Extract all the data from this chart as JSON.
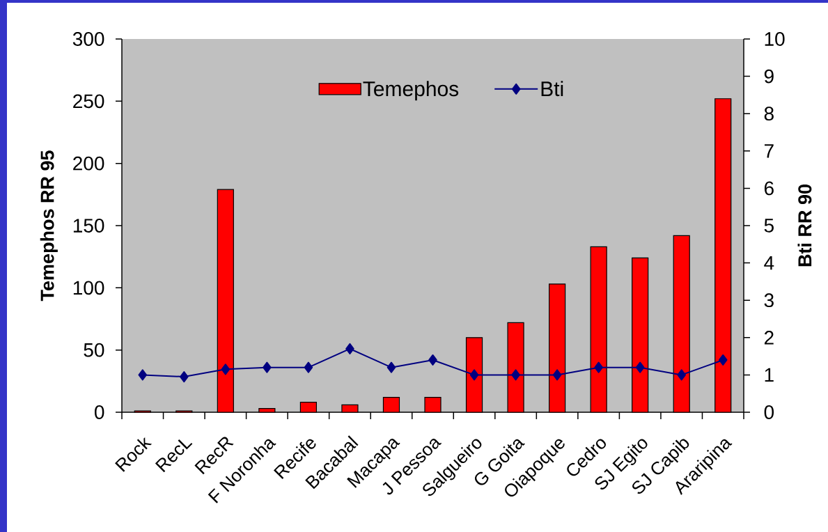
{
  "chart_data": {
    "type": "bar",
    "categories": [
      "Rock",
      "RecL",
      "RecR",
      "F Noronha",
      "Recife",
      "Bacabal",
      "Macapa",
      "J Pessoa",
      "Salgueiro",
      "G Goita",
      "Oiapoque",
      "Cedro",
      "SJ Egito",
      "SJ Capib",
      "Araripina"
    ],
    "series": [
      {
        "name": "Temephos",
        "type": "bar",
        "color": "#ff0000",
        "values": [
          1,
          1,
          179,
          3,
          8,
          6,
          12,
          12,
          60,
          72,
          103,
          133,
          124,
          142,
          252
        ]
      },
      {
        "name": "Bti",
        "type": "line",
        "axis": "y2",
        "color": "#000080",
        "marker": "diamond",
        "values": [
          1.0,
          0.95,
          1.15,
          1.2,
          1.2,
          1.7,
          1.2,
          1.4,
          1.0,
          1.0,
          1.0,
          1.2,
          1.2,
          1.0,
          1.4
        ]
      }
    ],
    "ylabel": "Temephos RR 95",
    "y2label": "Bti RR 90",
    "ylim": [
      0,
      300
    ],
    "yticks": [
      0,
      50,
      100,
      150,
      200,
      250,
      300
    ],
    "y2lim": [
      0,
      10
    ],
    "y2ticks": [
      0,
      1,
      2,
      3,
      4,
      5,
      6,
      7,
      8,
      9,
      10
    ],
    "legend": "top"
  }
}
